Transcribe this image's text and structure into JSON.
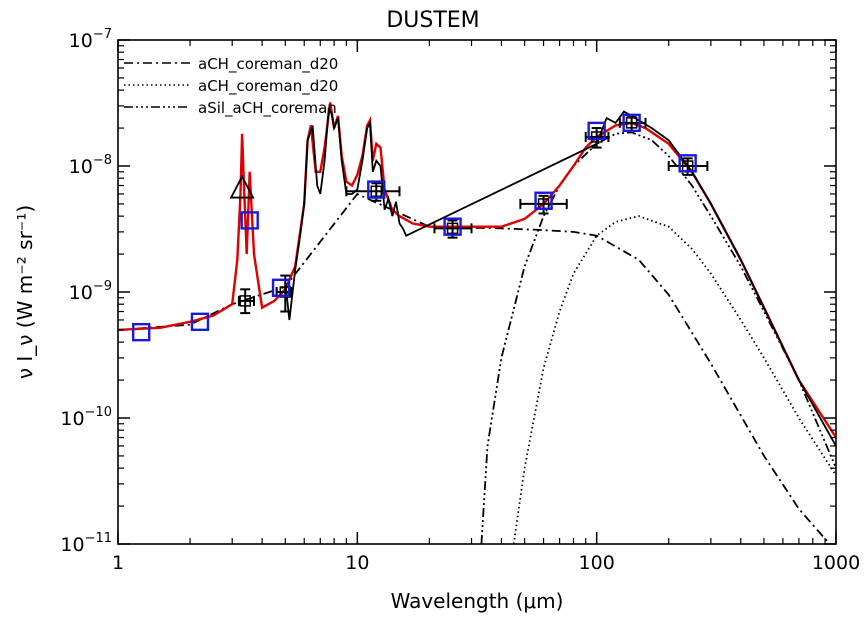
{
  "chart_data": {
    "type": "line",
    "title": "DUSTEM",
    "xlabel": "Wavelength (μm)",
    "ylabel": "ν I_ν (W m⁻² sr⁻¹)",
    "xscale": "log",
    "yscale": "log",
    "xlim": [
      1,
      1000
    ],
    "ylim": [
      1e-11,
      1e-07
    ],
    "x_ticks": [
      {
        "value": 1,
        "label": "1"
      },
      {
        "value": 10,
        "label": "10"
      },
      {
        "value": 100,
        "label": "100"
      },
      {
        "value": 1000,
        "label": "1000"
      }
    ],
    "y_ticks": [
      {
        "value": 1e-11,
        "mantissa": "10",
        "exp": "−11"
      },
      {
        "value": 1e-10,
        "mantissa": "10",
        "exp": "−10"
      },
      {
        "value": 1e-09,
        "mantissa": "10",
        "exp": "−9"
      },
      {
        "value": 1e-08,
        "mantissa": "10",
        "exp": "−8"
      },
      {
        "value": 1e-07,
        "mantissa": "10",
        "exp": "−7"
      }
    ],
    "legend_position": "top-left",
    "series": [
      {
        "name": "aCH_coreman_d20",
        "style": "dashdot",
        "color": "#000000",
        "x": [
          1,
          2,
          3,
          5,
          10,
          20,
          40,
          60,
          80,
          100,
          150,
          200,
          300,
          500,
          700,
          900,
          1000
        ],
        "y": [
          5e-10,
          5.5e-10,
          8e-10,
          1.1e-09,
          6e-09,
          3.3e-09,
          3.2e-09,
          3.1e-09,
          3e-09,
          2.8e-09,
          1.8e-09,
          9.5e-10,
          2.7e-10,
          5e-11,
          1.9e-11,
          1.1e-11,
          9e-12
        ]
      },
      {
        "name": "aCH_coreman_d20",
        "style": "dotted",
        "color": "#000000",
        "x": [
          45,
          50,
          60,
          70,
          80,
          100,
          120,
          150,
          200,
          250,
          300,
          400,
          500,
          700,
          1000
        ],
        "y": [
          1e-11,
          4e-11,
          2.5e-10,
          7e-10,
          1.4e-09,
          2.8e-09,
          3.6e-09,
          4e-09,
          3.3e-09,
          2.2e-09,
          1.4e-09,
          6e-10,
          3e-10,
          1e-10,
          3.5e-11
        ]
      },
      {
        "name": "aSil_aCH_coreman",
        "style": "dashdotdotdot",
        "color": "#000000",
        "x": [
          33,
          35,
          40,
          50,
          60,
          70,
          80,
          100,
          120,
          140,
          170,
          200,
          250,
          300,
          400,
          500,
          700,
          1000
        ],
        "y": [
          1e-11,
          6e-11,
          3e-10,
          1.6e-09,
          4e-09,
          7e-09,
          1e-08,
          1.5e-08,
          1.8e-08,
          1.85e-08,
          1.6e-08,
          1.2e-08,
          7e-09,
          4e-09,
          1.6e-09,
          7e-10,
          2e-10,
          4e-11
        ]
      },
      {
        "name": "",
        "style": "solid",
        "color": "#e00000",
        "x": [
          1,
          1.5,
          2,
          2.5,
          3,
          3.15,
          3.25,
          3.3,
          3.35,
          3.45,
          3.55,
          3.7,
          4,
          4.5,
          5,
          5.5,
          6,
          6.2,
          6.4,
          6.7,
          7,
          7.3,
          7.7,
          8,
          8.3,
          8.6,
          9,
          9.5,
          10,
          10.5,
          11,
          11.3,
          11.6,
          12,
          12.5,
          13,
          14,
          15,
          17,
          20,
          25,
          30,
          40,
          50,
          60,
          70,
          80,
          90,
          100,
          120,
          140,
          160,
          200,
          250,
          300,
          400,
          500,
          700,
          1000
        ],
        "y": [
          5e-10,
          5.2e-10,
          5.8e-10,
          6.5e-10,
          8e-10,
          1.8e-09,
          6e-09,
          1.8e-08,
          8e-09,
          2e-09,
          9e-09,
          2e-09,
          7.5e-10,
          8.5e-10,
          1.05e-09,
          1.6e-09,
          5e-09,
          1.6e-08,
          2.1e-08,
          9e-09,
          9e-09,
          1.4e-08,
          3.2e-08,
          2e-08,
          2.5e-08,
          1.2e-08,
          7.5e-09,
          7e-09,
          8.5e-09,
          1.2e-08,
          2.1e-08,
          2.3e-08,
          1.1e-08,
          1.5e-08,
          1.4e-08,
          6.5e-09,
          4.5e-09,
          4e-09,
          3.5e-09,
          3.3e-09,
          3.3e-09,
          3.3e-09,
          3.3e-09,
          3.8e-09,
          5e-09,
          7e-09,
          1e-08,
          1.4e-08,
          1.7e-08,
          2.1e-08,
          2.2e-08,
          2e-08,
          1.5e-08,
          9e-09,
          5e-09,
          1.8e-09,
          7.5e-10,
          2e-10,
          7e-11
        ]
      },
      {
        "name": "",
        "style": "solid",
        "color": "#000000",
        "x": [
          5,
          5.2,
          5.5,
          5.8,
          6,
          6.2,
          6.5,
          6.8,
          7,
          7.3,
          7.6,
          7.8,
          8,
          8.3,
          8.6,
          9,
          9.5,
          10,
          10.5,
          11,
          11.3,
          11.6,
          12,
          12.5,
          13,
          13.5,
          14,
          14.5,
          15,
          15.5,
          16,
          100,
          110,
          120,
          130,
          140,
          150,
          170,
          200,
          250,
          300,
          400,
          500,
          700,
          1000
        ],
        "y": [
          1.2e-09,
          6e-10,
          1.5e-09,
          3e-09,
          5e-09,
          1.6e-08,
          2.1e-08,
          7e-09,
          6e-09,
          1.1e-08,
          2.9e-08,
          2.6e-08,
          2e-08,
          2.4e-08,
          1.1e-08,
          6e-09,
          6e-09,
          6.5e-09,
          1.1e-08,
          2e-08,
          2.2e-08,
          9e-09,
          1.1e-08,
          1e-08,
          4.5e-09,
          5.5e-09,
          4e-09,
          5.2e-09,
          3.5e-09,
          3.2e-09,
          2.8e-09,
          1.5e-08,
          2.4e-08,
          2.2e-08,
          2.7e-08,
          2.5e-08,
          2.3e-08,
          2e-08,
          1.6e-08,
          9e-09,
          5e-09,
          1.8e-09,
          7.5e-10,
          2e-10,
          6e-11
        ]
      }
    ],
    "observations": [
      {
        "x": 3.4,
        "y": 8.5e-10,
        "xlo": 3.2,
        "xhi": 3.7,
        "ylo": 6.8e-10,
        "yhi": 1.05e-09
      },
      {
        "x": 5.0,
        "y": 1e-09,
        "xlo": 4.6,
        "xhi": 5.3,
        "ylo": 7e-10,
        "yhi": 1.35e-09
      },
      {
        "x": 12,
        "y": 6.3e-09,
        "xlo": 9,
        "xhi": 15,
        "ylo": 5.3e-09,
        "yhi": 7.3e-09
      },
      {
        "x": 25,
        "y": 3.2e-09,
        "xlo": 21,
        "xhi": 30,
        "ylo": 2.7e-09,
        "yhi": 3.7e-09
      },
      {
        "x": 60,
        "y": 5e-09,
        "xlo": 48,
        "xhi": 75,
        "ylo": 4.2e-09,
        "yhi": 5.8e-09
      },
      {
        "x": 100,
        "y": 1.7e-08,
        "xlo": 90,
        "xhi": 112,
        "ylo": 1.4e-08,
        "yhi": 2e-08
      },
      {
        "x": 140,
        "y": 2.2e-08,
        "xlo": 125,
        "xhi": 160,
        "ylo": 1.9e-08,
        "yhi": 2.5e-08
      },
      {
        "x": 240,
        "y": 1e-08,
        "xlo": 200,
        "xhi": 290,
        "ylo": 8.5e-09,
        "yhi": 1.15e-08
      }
    ],
    "model_points": [
      {
        "x": 1.25,
        "y": 4.8e-10
      },
      {
        "x": 2.2,
        "y": 5.8e-10
      },
      {
        "x": 3.55,
        "y": 3.7e-09
      },
      {
        "x": 4.8,
        "y": 1.08e-09
      },
      {
        "x": 12,
        "y": 6.5e-09
      },
      {
        "x": 25,
        "y": 3.3e-09
      },
      {
        "x": 60,
        "y": 5.3e-09
      },
      {
        "x": 100,
        "y": 1.9e-08
      },
      {
        "x": 140,
        "y": 2.2e-08
      },
      {
        "x": 240,
        "y": 1.05e-08
      }
    ],
    "triangle_point": {
      "x": 3.3,
      "y": 6.5e-09
    }
  }
}
